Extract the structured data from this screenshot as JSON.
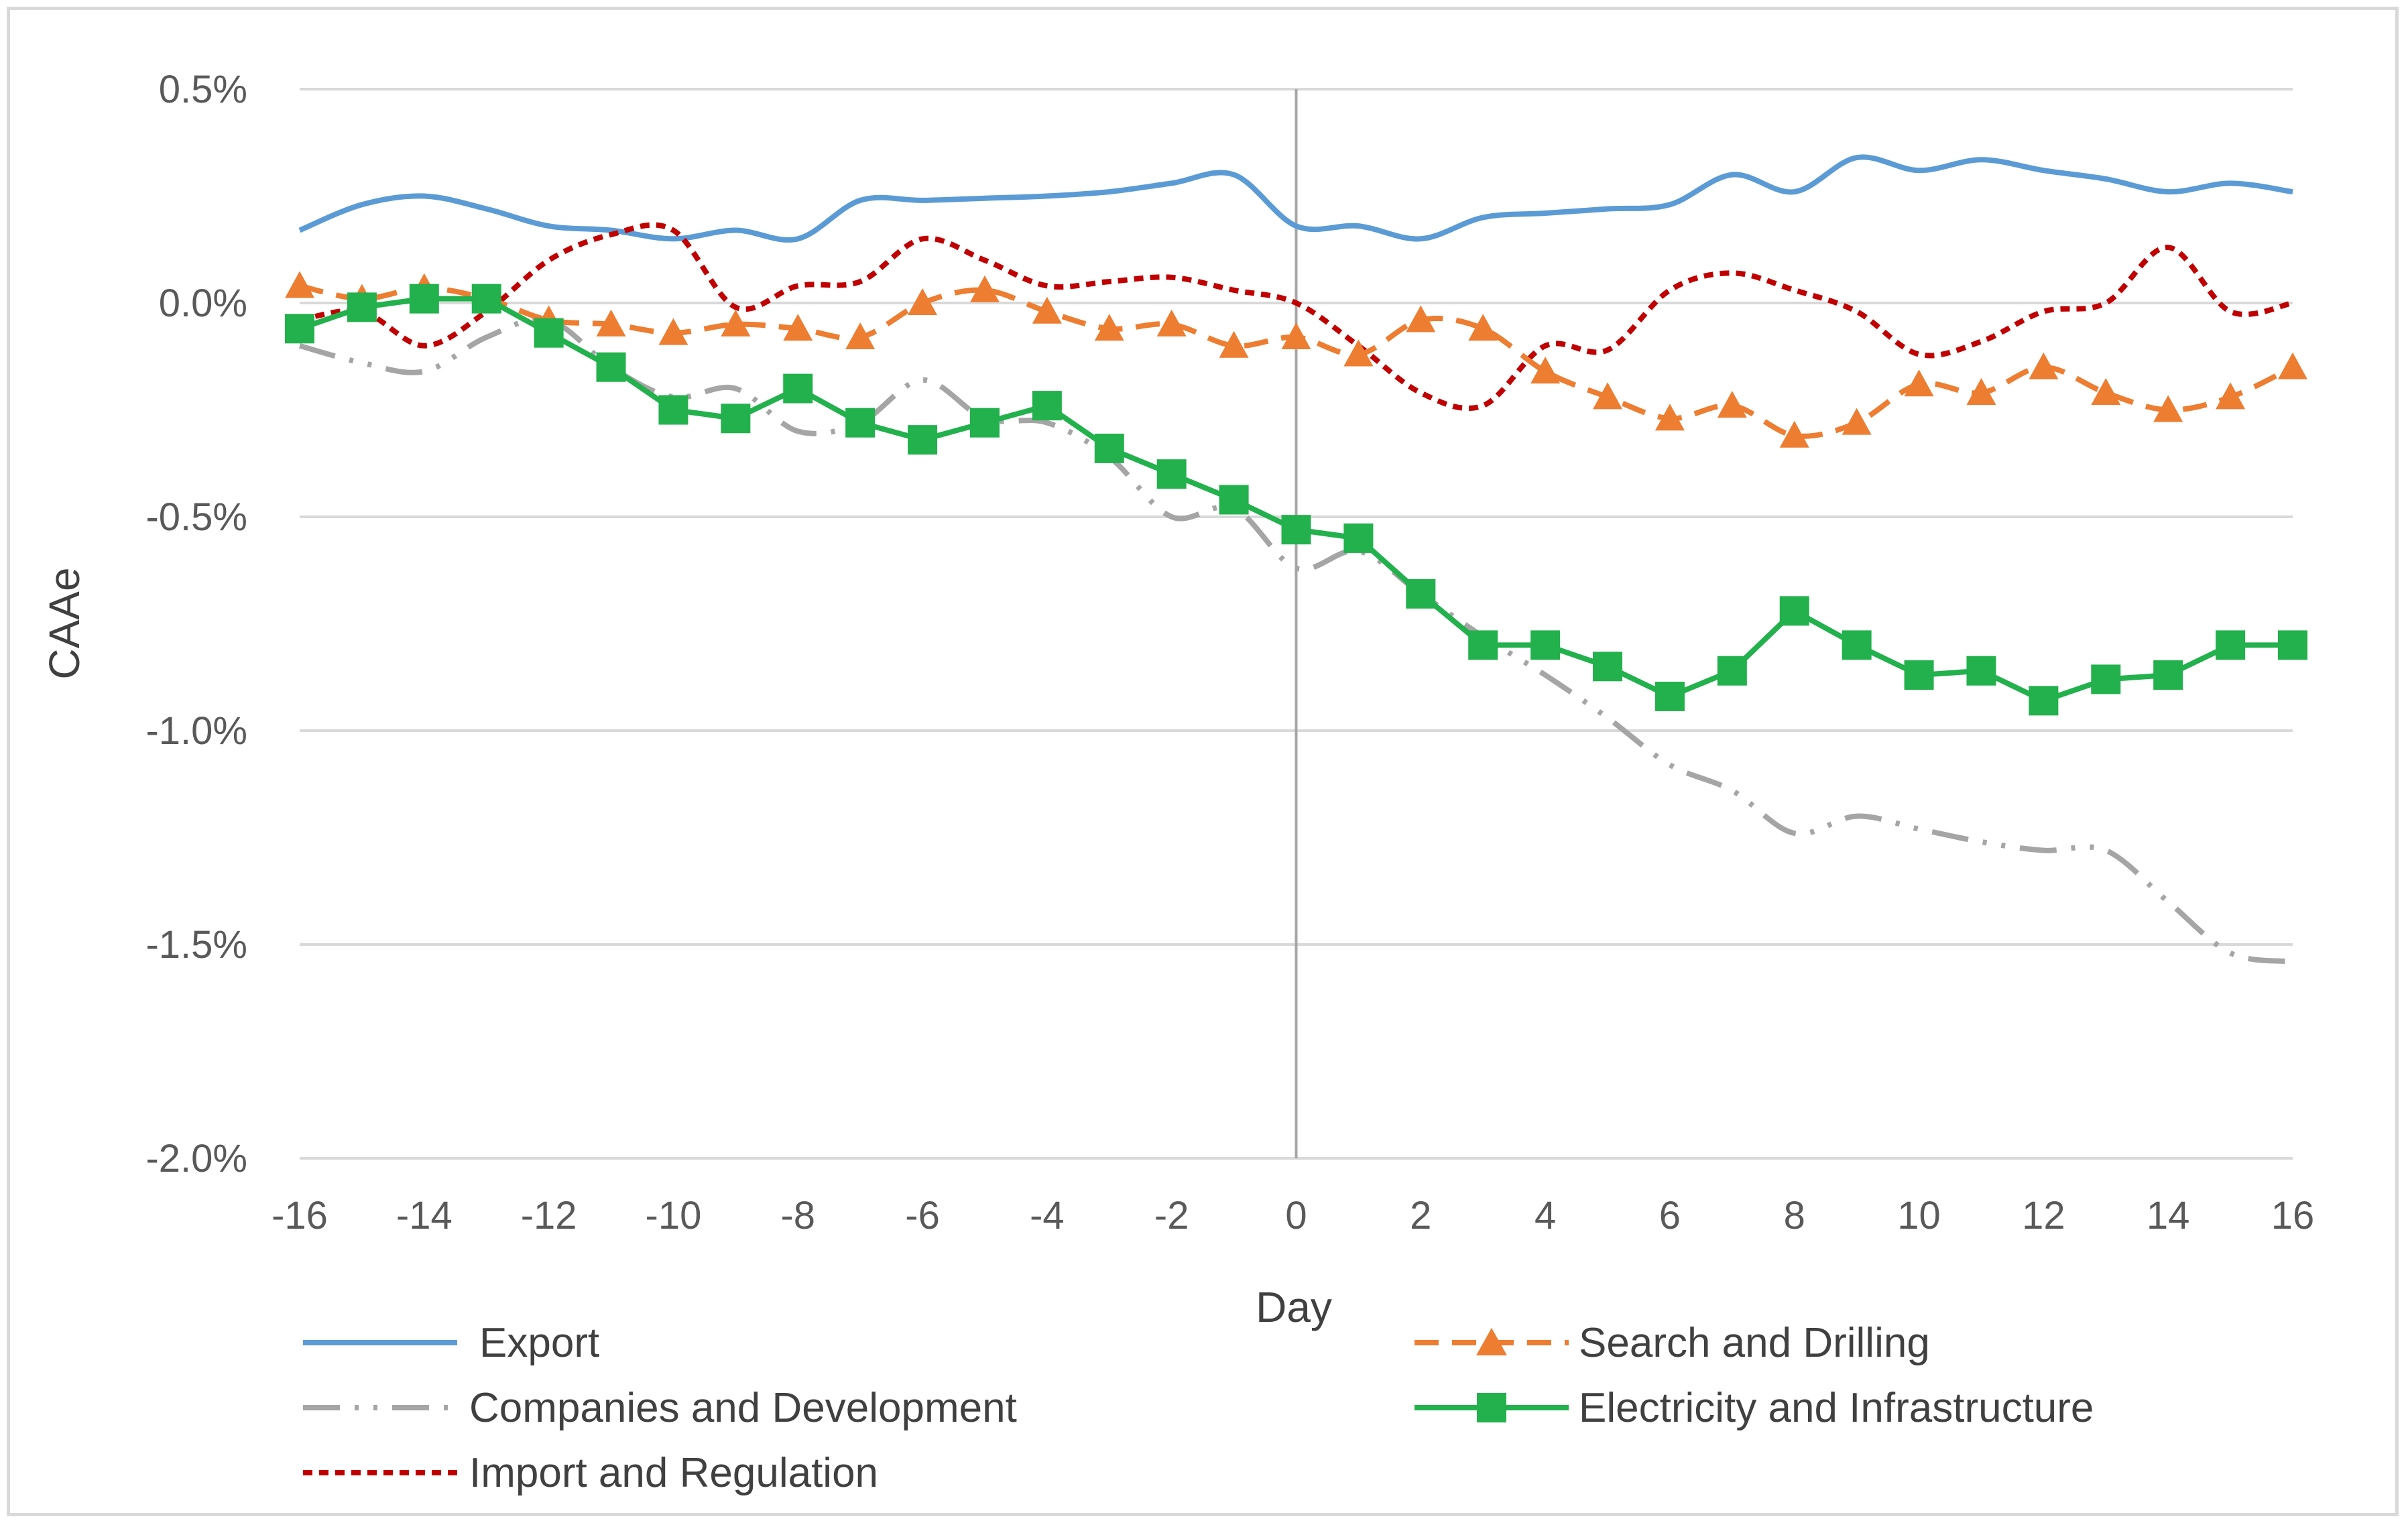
{
  "chart_data": {
    "type": "line",
    "title": "",
    "xlabel": "Day",
    "ylabel": "CAAe",
    "xlim": [
      -16,
      16
    ],
    "ylim": [
      -2.0,
      0.5
    ],
    "x_ticks": [
      -16,
      -14,
      -12,
      -10,
      -8,
      -6,
      -4,
      -2,
      0,
      2,
      4,
      6,
      8,
      10,
      12,
      14,
      16
    ],
    "x_tick_labels": [
      "-16",
      "-14",
      "-12",
      "-10",
      "-8",
      "-6",
      "-4",
      "-2",
      "0",
      "2",
      "4",
      "6",
      "8",
      "10",
      "12",
      "14",
      "16"
    ],
    "y_ticks": [
      0.5,
      0.0,
      -0.5,
      -1.0,
      -1.5,
      -2.0
    ],
    "y_tick_labels": [
      "0.5%",
      "0.0%",
      "-0.5%",
      "-1.0%",
      "-1.5%",
      "-2.0%"
    ],
    "vertical_reference_line_x": 0,
    "grid": "horizontal",
    "legend_position": "bottom",
    "x": [
      -16,
      -15,
      -14,
      -13,
      -12,
      -11,
      -10,
      -9,
      -8,
      -7,
      -6,
      -5,
      -4,
      -3,
      -2,
      -1,
      0,
      1,
      2,
      3,
      4,
      5,
      6,
      7,
      8,
      9,
      10,
      11,
      12,
      13,
      14,
      15,
      16
    ],
    "series": [
      {
        "name": "Export",
        "color": "#5b9bd5",
        "style": "solid",
        "marker": "none",
        "values": [
          0.17,
          0.23,
          0.25,
          0.22,
          0.18,
          0.17,
          0.15,
          0.17,
          0.15,
          0.24,
          0.24,
          0.245,
          0.25,
          0.26,
          0.28,
          0.3,
          0.18,
          0.18,
          0.15,
          0.2,
          0.21,
          0.22,
          0.23,
          0.3,
          0.26,
          0.34,
          0.31,
          0.335,
          0.31,
          0.29,
          0.26,
          0.28,
          0.26
        ]
      },
      {
        "name": "Search and Drilling",
        "color": "#ed7d31",
        "style": "dashed",
        "marker": "triangle",
        "values": [
          0.04,
          0.01,
          0.035,
          0.01,
          -0.04,
          -0.05,
          -0.07,
          -0.05,
          -0.06,
          -0.08,
          0.0,
          0.03,
          -0.02,
          -0.06,
          -0.05,
          -0.1,
          -0.08,
          -0.12,
          -0.04,
          -0.06,
          -0.16,
          -0.22,
          -0.27,
          -0.24,
          -0.31,
          -0.28,
          -0.19,
          -0.21,
          -0.15,
          -0.21,
          -0.25,
          -0.22,
          -0.15
        ]
      },
      {
        "name": "Companies and Development",
        "color": "#a5a5a5",
        "style": "dash-dot-dot",
        "marker": "none",
        "values": [
          -0.1,
          -0.14,
          -0.16,
          -0.08,
          -0.04,
          -0.15,
          -0.22,
          -0.2,
          -0.3,
          -0.28,
          -0.18,
          -0.27,
          -0.28,
          -0.36,
          -0.5,
          -0.48,
          -0.62,
          -0.58,
          -0.68,
          -0.78,
          -0.87,
          -0.97,
          -1.08,
          -1.14,
          -1.24,
          -1.2,
          -1.23,
          -1.26,
          -1.28,
          -1.28,
          -1.4,
          -1.52,
          -1.54
        ]
      },
      {
        "name": "Electricity and Infrastructure",
        "color": "#22b14c",
        "style": "solid",
        "marker": "square",
        "values": [
          -0.06,
          -0.01,
          0.01,
          0.01,
          -0.07,
          -0.15,
          -0.25,
          -0.27,
          -0.2,
          -0.28,
          -0.32,
          -0.28,
          -0.24,
          -0.34,
          -0.4,
          -0.46,
          -0.53,
          -0.55,
          -0.68,
          -0.8,
          -0.8,
          -0.85,
          -0.92,
          -0.86,
          -0.72,
          -0.8,
          -0.87,
          -0.86,
          -0.93,
          -0.88,
          -0.87,
          -0.8,
          -0.8
        ]
      },
      {
        "name": "Import and Regulation",
        "color": "#c00000",
        "style": "dotted",
        "marker": "none",
        "values": [
          -0.04,
          -0.02,
          -0.1,
          -0.02,
          0.1,
          0.16,
          0.17,
          -0.01,
          0.04,
          0.05,
          0.15,
          0.1,
          0.04,
          0.05,
          0.06,
          0.03,
          0.0,
          -0.1,
          -0.21,
          -0.24,
          -0.1,
          -0.11,
          0.03,
          0.07,
          0.03,
          -0.02,
          -0.12,
          -0.09,
          -0.02,
          0.0,
          0.13,
          -0.02,
          0.0
        ]
      }
    ]
  }
}
